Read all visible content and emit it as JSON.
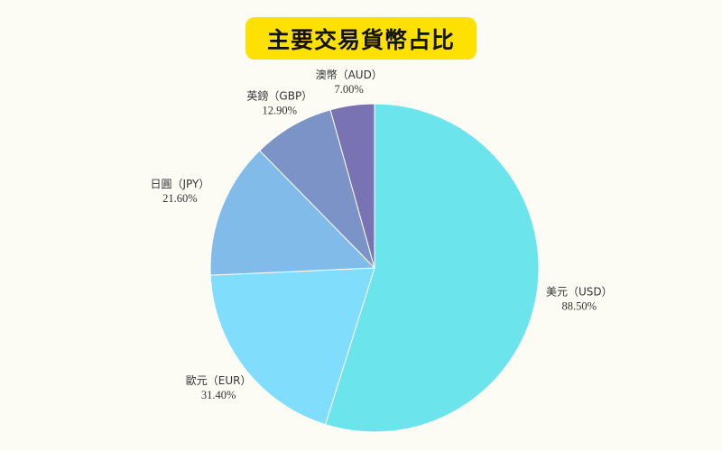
{
  "chart_data": {
    "type": "pie",
    "title": "主要交易貨幣占比",
    "legend": "none",
    "slices": [
      {
        "label": "美元（USD）",
        "value": 88.5,
        "value_label": "88.50%",
        "color": "#6be5eb"
      },
      {
        "label": "歐元（EUR）",
        "value": 31.4,
        "value_label": "31.40%",
        "color": "#80defc"
      },
      {
        "label": "日圓（JPY）",
        "value": 21.6,
        "value_label": "21.60%",
        "color": "#80bbe9"
      },
      {
        "label": "英鎊（GBP）",
        "value": 12.9,
        "value_label": "12.90%",
        "color": "#7b93c6"
      },
      {
        "label": "澳幣（AUD）",
        "value": 7.0,
        "value_label": "7.00%",
        "color": "#7a73b3"
      }
    ]
  },
  "colors": {
    "background": "#fcfcf5",
    "title_badge": "#ffe100",
    "title_text": "#111111"
  }
}
